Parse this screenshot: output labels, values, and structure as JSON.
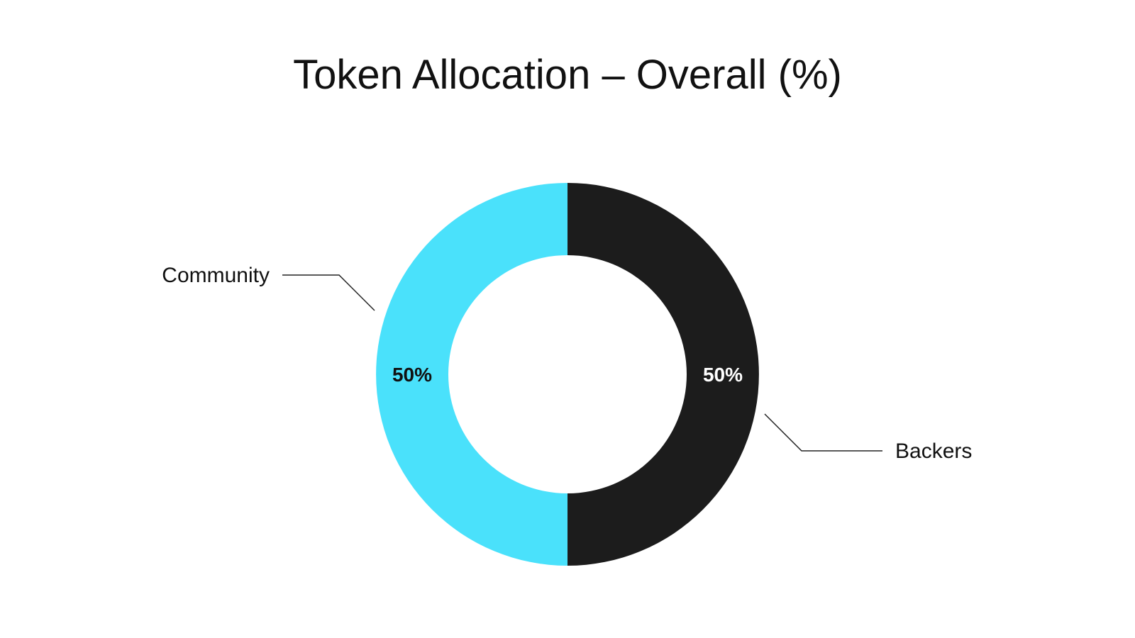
{
  "chart_data": {
    "type": "pie",
    "variant": "donut",
    "title": "Token Allocation – Overall (%)",
    "slices": [
      {
        "label": "Community",
        "value": 50,
        "display": "50%",
        "color": "#4ae1fb",
        "text_color": "#111111"
      },
      {
        "label": "Backers",
        "value": 50,
        "display": "50%",
        "color": "#1c1c1c",
        "text_color": "#ffffff"
      }
    ]
  }
}
